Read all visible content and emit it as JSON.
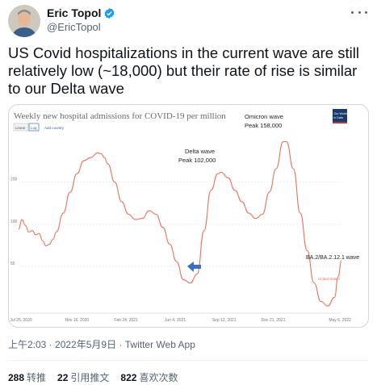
{
  "author": {
    "name": "Eric Topol",
    "handle": "@EricTopol",
    "verified_icon": "verified-badge-icon",
    "accent": "#1d9bf0"
  },
  "tweet": {
    "text": "US Covid hospitalizations in the current wave are still relatively low (~18,000) but their rate of rise is similar to our Delta wave",
    "time": "上午2:03 · 2022年5月9日",
    "separator": " · ",
    "source": "Twitter Web App"
  },
  "stats": {
    "retweets_count": "288",
    "retweets_label": "转推",
    "quotes_count": "22",
    "quotes_label": "引用推文",
    "likes_count": "822",
    "likes_label": "喜欢次数"
  },
  "chart_data": {
    "type": "line",
    "title": "Weekly new hospital admissions for COVID-19 per million",
    "toggles": [
      "Linear",
      "Log"
    ],
    "add_country": "Add country",
    "logo_text": [
      "Our World",
      "in Data"
    ],
    "x_ticks": [
      "Jul 25, 2020",
      "Nov 16, 2020",
      "Feb 24, 2021",
      "Jun 4, 2021",
      "Sep 12, 2021",
      "Dec 21, 2021",
      "May 6, 2022"
    ],
    "y_ticks": [
      50,
      100,
      200
    ],
    "y_scale": "log",
    "series": [
      {
        "name": "United States",
        "color": "#e8735a",
        "x": [
          "2020-07-20",
          "2020-07-27",
          "2020-08-03",
          "2020-08-10",
          "2020-08-17",
          "2020-08-24",
          "2020-08-31",
          "2020-09-07",
          "2020-09-14",
          "2020-09-21",
          "2020-09-28",
          "2020-10-05",
          "2020-10-19",
          "2020-11-02",
          "2020-11-16",
          "2020-11-30",
          "2020-12-14",
          "2020-12-28",
          "2021-01-04",
          "2021-01-11",
          "2021-01-18",
          "2021-02-01",
          "2021-02-15",
          "2021-03-01",
          "2021-03-15",
          "2021-03-29",
          "2021-04-12",
          "2021-04-26",
          "2021-05-10",
          "2021-05-24",
          "2021-06-07",
          "2021-06-21",
          "2021-07-05",
          "2021-07-19",
          "2021-08-02",
          "2021-08-16",
          "2021-08-30",
          "2021-09-06",
          "2021-09-20",
          "2021-10-04",
          "2021-10-18",
          "2021-11-01",
          "2021-11-15",
          "2021-11-29",
          "2021-12-13",
          "2021-12-27",
          "2022-01-10",
          "2022-01-17",
          "2022-01-31",
          "2022-02-14",
          "2022-02-28",
          "2022-03-14",
          "2022-03-28",
          "2022-04-11",
          "2022-04-25",
          "2022-05-02",
          "2022-05-09"
        ],
        "y": [
          92,
          108,
          98,
          88,
          90,
          84,
          86,
          76,
          70,
          72,
          78,
          88,
          120,
          170,
          230,
          285,
          300,
          325,
          320,
          300,
          270,
          200,
          145,
          118,
          108,
          110,
          125,
          118,
          95,
          72,
          54,
          40,
          38,
          44,
          90,
          175,
          230,
          235,
          215,
          175,
          145,
          120,
          110,
          118,
          170,
          250,
          390,
          390,
          250,
          120,
          65,
          38,
          28,
          26,
          30,
          42,
          55
        ]
      }
    ],
    "annotations": [
      {
        "text": [
          "Delta wave",
          "Peak 102,000"
        ]
      },
      {
        "text": [
          "Omicron wave",
          "Peak 158,000"
        ]
      },
      {
        "text": [
          "BA.2/BA.2.12.1 wave"
        ]
      },
      {
        "text": [
          "United States"
        ]
      }
    ],
    "arrow_color": "#3b6fc4",
    "grid": true
  }
}
